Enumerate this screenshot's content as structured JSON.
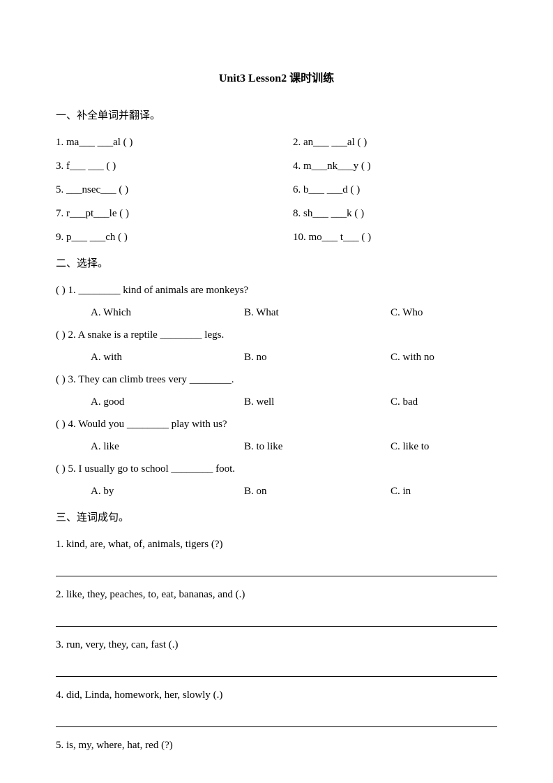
{
  "title": "Unit3 Lesson2 课时训练",
  "section1": {
    "header": "一、补全单词并翻译。",
    "rows": [
      {
        "l": "1. ma___ ___al (        )",
        "r": "2. an___ ___al (        )"
      },
      {
        "l": "3. f___ ___  (        )",
        "r": "4. m___nk___y (        )"
      },
      {
        "l": "5. ___nsec___  (        )",
        "r": "6. b___ ___d (        )"
      },
      {
        "l": "7. r___pt___le (        )",
        "r": "8. sh___ ___k (        )"
      },
      {
        "l": "9. p___ ___ch (        )",
        "r": "10. mo___  t___  (        )"
      }
    ]
  },
  "section2": {
    "header": "二、选择。",
    "items": [
      {
        "q": "(    ) 1. ________ kind of animals are monkeys?",
        "a": "A. Which",
        "b": "B. What",
        "c": "C. Who"
      },
      {
        "q": "(    ) 2. A snake is a reptile ________ legs.",
        "a": "A. with",
        "b": "B. no",
        "c": "C. with no"
      },
      {
        "q": "(    ) 3. They can climb trees very ________.",
        "a": "A. good",
        "b": "B. well",
        "c": "C. bad"
      },
      {
        "q": "(    ) 4. Would you ________ play with us?",
        "a": "A. like",
        "b": "B. to like",
        "c": "C. like to"
      },
      {
        "q": "(    ) 5. I usually go to school ________ foot.",
        "a": "A. by",
        "b": "B. on",
        "c": "C. in"
      }
    ]
  },
  "section3": {
    "header": "三、连词成句。",
    "items": [
      "1. kind,      are,      what,      of,      animals,      tigers      (?)",
      "2. like,      they,      peaches,      to,      eat,      bananas,      and      (.)",
      "3. run,      very,      they,      can,      fast      (.)",
      "4. did,      Linda,      homework,      her,      slowly      (.)",
      "5. is,      my,      where,      hat,      red      (?)"
    ]
  }
}
